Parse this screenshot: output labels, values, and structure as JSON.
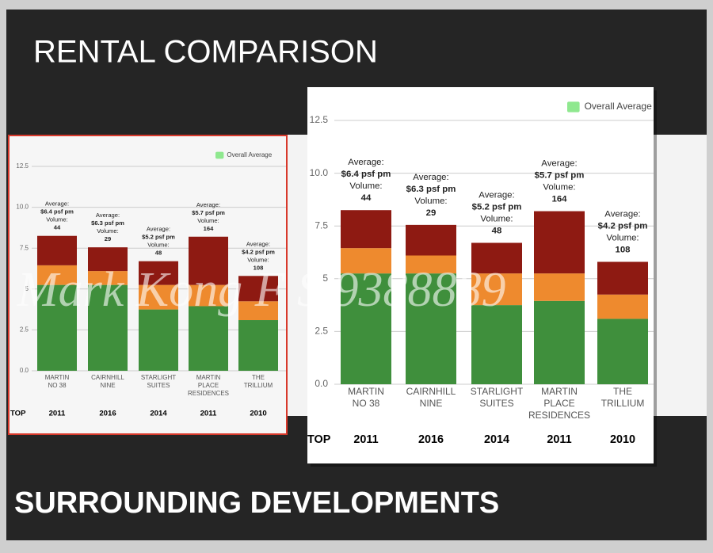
{
  "title": "RENTAL COMPARISON",
  "footer_title": "SURROUNDING DEVELOPMENTS",
  "watermark": "Mark Kong F S 9388889",
  "chart_data": {
    "type": "stacked-bar",
    "categories": [
      "MARTIN NO 38",
      "CAIRNHILL NINE",
      "STARLIGHT SUITES",
      "MARTIN PLACE RESIDENCES",
      "THE TRILLIUM"
    ],
    "series": [
      {
        "color": "#3f8f3c",
        "values": [
          5.25,
          5.25,
          3.75,
          3.95,
          3.1
        ]
      },
      {
        "color": "#ee8a2e",
        "values": [
          1.2,
          0.85,
          1.5,
          1.3,
          1.15
        ]
      },
      {
        "color": "#8e1a12",
        "values": [
          1.8,
          1.45,
          1.45,
          2.95,
          1.55
        ]
      }
    ],
    "legend": [
      {
        "name": "Overall Average",
        "color": "#8fe88f"
      }
    ],
    "average_label": "Average:",
    "volume_label": "Volume:",
    "annotations": [
      {
        "average": "$6.4 psf pm",
        "volume": 44
      },
      {
        "average": "$6.3 psf pm",
        "volume": 29
      },
      {
        "average": "$5.2 psf pm",
        "volume": 48
      },
      {
        "average": "$5.7 psf pm",
        "volume": 164
      },
      {
        "average": "$4.2 psf pm",
        "volume": 108
      }
    ],
    "top_label": "TOP",
    "top_years": [
      2011,
      2016,
      2014,
      2011,
      2010
    ],
    "ylim": [
      0,
      12.5
    ],
    "yticks": [
      {
        "value": 0,
        "label": "0.0"
      },
      2.5,
      5,
      7.5,
      {
        "value": 10,
        "label": "10.0"
      },
      12.5
    ],
    "grid": true
  }
}
